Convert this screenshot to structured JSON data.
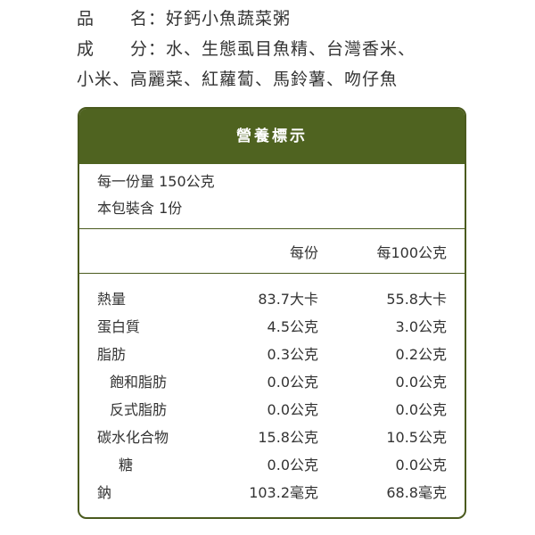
{
  "header": {
    "lines": [
      "品　　名：好鈣小魚蔬菜粥",
      "成　　分：水、生態虱目魚精、台灣香米、",
      "小米、高麗菜、紅蘿蔔、馬鈴薯、吻仔魚"
    ]
  },
  "table": {
    "title": "營養標示",
    "serving": [
      "每一份量 150公克",
      "本包裝含 1份"
    ],
    "columns": [
      "每份",
      "每100公克"
    ],
    "rows": [
      [
        "熱量",
        "83.7大卡",
        "55.8大卡"
      ],
      [
        "蛋白質",
        "4.5公克",
        "3.0公克"
      ],
      [
        "脂肪",
        "0.3公克",
        "0.2公克"
      ],
      [
        "飽和脂肪",
        "0.0公克",
        "0.0公克"
      ],
      [
        "反式脂肪",
        "0.0公克",
        "0.0公克"
      ],
      [
        "碳水化合物",
        "15.8公克",
        "10.5公克"
      ],
      [
        "糖",
        "0.0公克",
        "0.0公克"
      ],
      [
        "鈉",
        "103.2毫克",
        "68.8毫克"
      ]
    ]
  }
}
